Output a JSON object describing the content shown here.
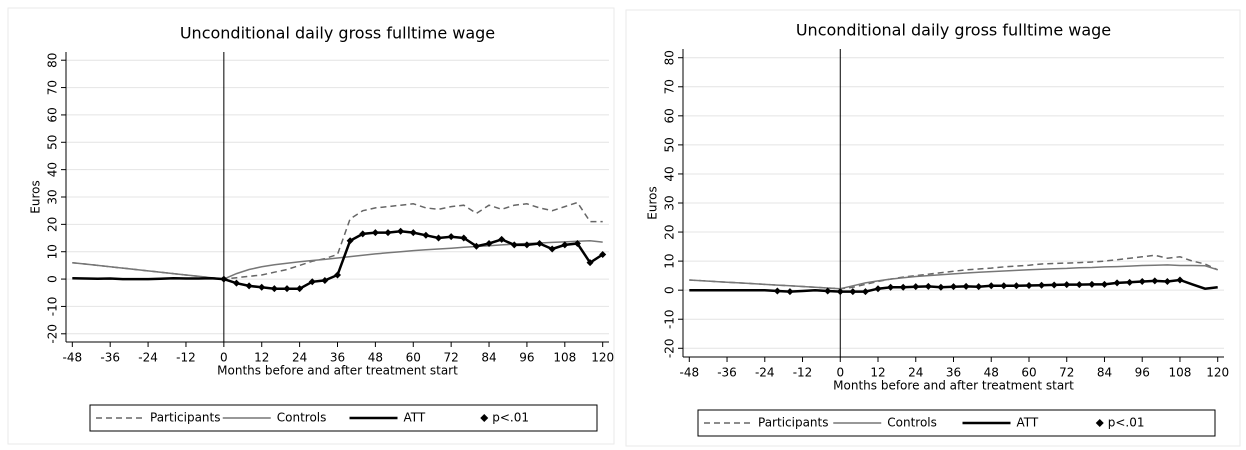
{
  "chart_data": [
    {
      "type": "line",
      "title": "Unconditional daily gross fulltime wage",
      "xlabel": "Months before and after treatment start",
      "ylabel": "Euros",
      "x": [
        -48,
        -44,
        -40,
        -36,
        -32,
        -28,
        -24,
        -20,
        -16,
        -12,
        -8,
        -4,
        0,
        4,
        8,
        12,
        16,
        20,
        24,
        28,
        32,
        36,
        40,
        44,
        48,
        52,
        56,
        60,
        64,
        68,
        72,
        76,
        80,
        84,
        88,
        92,
        96,
        100,
        104,
        108,
        112,
        116,
        120
      ],
      "series": [
        {
          "name": "Participants",
          "color": "#666666",
          "line_style": "dashed",
          "values": [
            6,
            5.5,
            5,
            4.5,
            4,
            3.5,
            3,
            2.5,
            2,
            1.5,
            1,
            0.5,
            0,
            0.5,
            1,
            1.5,
            2.5,
            3.5,
            5,
            6.5,
            7.5,
            9,
            22,
            25,
            26,
            26.5,
            27,
            27.5,
            26,
            25.5,
            26.5,
            27,
            24,
            27,
            25.5,
            27,
            27.5,
            26,
            25,
            26.5,
            28,
            21,
            21
          ]
        },
        {
          "name": "Controls",
          "color": "#777777",
          "line_style": "solid",
          "values": [
            6,
            5.5,
            5,
            4.5,
            4,
            3.5,
            3,
            2.5,
            2,
            1.5,
            1,
            0.5,
            0,
            2,
            3.5,
            4.5,
            5.2,
            5.8,
            6.3,
            6.8,
            7.2,
            7.7,
            8.2,
            8.7,
            9.2,
            9.6,
            10,
            10.4,
            10.7,
            11,
            11.3,
            11.6,
            11.9,
            12.2,
            12.5,
            12.8,
            13,
            13.2,
            13.4,
            13.6,
            13.8,
            14,
            13.5
          ]
        },
        {
          "name": "ATT",
          "color": "#000000",
          "line_style": "thick",
          "values": [
            0.3,
            0.2,
            0.1,
            0.2,
            0,
            0,
            0,
            0.1,
            0.3,
            0.2,
            0.2,
            0.3,
            0,
            -1.5,
            -2.5,
            -3,
            -3.5,
            -3.5,
            -3.5,
            -1,
            -0.5,
            1.5,
            14,
            16.5,
            17,
            17,
            17.5,
            17,
            16,
            15,
            15.5,
            15,
            12,
            13,
            14.5,
            12.5,
            12.5,
            13,
            11,
            12.5,
            13,
            6,
            9
          ]
        },
        {
          "name": "p<.01",
          "color": "#000000",
          "line_style": "none",
          "marker": "diamond",
          "values": [
            null,
            null,
            null,
            null,
            null,
            null,
            null,
            null,
            null,
            null,
            null,
            null,
            0,
            -1.5,
            -2.5,
            -3,
            -3.5,
            -3.5,
            -3.5,
            -1,
            -0.5,
            1.5,
            14,
            16.5,
            17,
            17,
            17.5,
            17,
            16,
            15,
            15.5,
            15,
            12,
            13,
            14.5,
            12.5,
            12.5,
            13,
            11,
            12.5,
            13,
            6,
            9
          ]
        }
      ],
      "vlines": [
        0
      ],
      "xlim": [
        -50,
        122
      ],
      "ylim": [
        -23,
        83
      ],
      "xticks": [
        -48,
        -36,
        -24,
        -12,
        0,
        12,
        24,
        36,
        48,
        60,
        72,
        84,
        96,
        108,
        120
      ],
      "yticks": [
        -20,
        -10,
        0,
        10,
        20,
        30,
        40,
        50,
        60,
        70,
        80
      ],
      "grid": true,
      "legend": "bottom"
    },
    {
      "type": "line",
      "title": "Unconditional daily gross fulltime wage",
      "xlabel": "Months before and after treatment start",
      "ylabel": "Euros",
      "x": [
        -48,
        -44,
        -40,
        -36,
        -32,
        -28,
        -24,
        -20,
        -16,
        -12,
        -8,
        -4,
        0,
        4,
        8,
        12,
        16,
        20,
        24,
        28,
        32,
        36,
        40,
        44,
        48,
        52,
        56,
        60,
        64,
        68,
        72,
        76,
        80,
        84,
        88,
        92,
        96,
        100,
        104,
        108,
        112,
        116,
        120
      ],
      "series": [
        {
          "name": "Participants",
          "color": "#666666",
          "line_style": "dashed",
          "values": [
            3.5,
            3.25,
            3,
            2.75,
            2.5,
            2.25,
            2,
            1.75,
            1.5,
            1.25,
            1,
            0.75,
            0.5,
            1,
            2,
            3,
            3.8,
            4.5,
            5,
            5.5,
            6,
            6.5,
            7,
            7.3,
            7.6,
            8,
            8.3,
            8.6,
            9,
            9.2,
            9.3,
            9.5,
            9.7,
            10,
            10.5,
            11,
            11.5,
            12,
            11,
            11.5,
            10,
            9,
            7
          ]
        },
        {
          "name": "Controls",
          "color": "#777777",
          "line_style": "solid",
          "values": [
            3.5,
            3.25,
            3,
            2.75,
            2.5,
            2.25,
            2,
            1.75,
            1.5,
            1.25,
            1,
            0.75,
            0.5,
            1.5,
            2.5,
            3.2,
            3.8,
            4.3,
            4.7,
            5,
            5.3,
            5.6,
            5.9,
            6.2,
            6.4,
            6.6,
            6.8,
            7,
            7.2,
            7.4,
            7.5,
            7.7,
            7.8,
            8,
            8.1,
            8.3,
            8.5,
            8.6,
            8.7,
            8.5,
            8.5,
            8.4,
            7
          ]
        },
        {
          "name": "ATT",
          "color": "#000000",
          "line_style": "thick",
          "values": [
            0,
            0,
            0,
            0,
            0,
            0,
            0,
            -0.3,
            -0.5,
            -0.3,
            0,
            -0.3,
            -0.5,
            -0.5,
            -0.5,
            0.5,
            1,
            1,
            1.2,
            1.3,
            1,
            1.2,
            1.3,
            1.2,
            1.5,
            1.5,
            1.5,
            1.6,
            1.7,
            1.8,
            1.9,
            1.9,
            2,
            2,
            2.5,
            2.7,
            3,
            3.2,
            3,
            3.5,
            2,
            0.5,
            1
          ]
        },
        {
          "name": "p<.01",
          "color": "#000000",
          "line_style": "none",
          "marker": "diamond",
          "values": [
            null,
            null,
            null,
            null,
            null,
            null,
            null,
            -0.3,
            -0.5,
            null,
            null,
            -0.3,
            -0.5,
            -0.5,
            -0.5,
            0.5,
            1,
            1,
            1.2,
            1.3,
            1,
            1.2,
            1.3,
            1.2,
            1.5,
            1.5,
            1.5,
            1.6,
            1.7,
            1.8,
            1.9,
            1.9,
            2,
            2,
            2.5,
            2.7,
            3,
            3.2,
            3,
            3.5,
            null,
            null,
            null
          ]
        }
      ],
      "vlines": [
        0
      ],
      "xlim": [
        -50,
        122
      ],
      "ylim": [
        -23,
        83
      ],
      "xticks": [
        -48,
        -36,
        -24,
        -12,
        0,
        12,
        24,
        36,
        48,
        60,
        72,
        84,
        96,
        108,
        120
      ],
      "yticks": [
        -20,
        -10,
        0,
        10,
        20,
        30,
        40,
        50,
        60,
        70,
        80
      ],
      "grid": true,
      "legend": "bottom"
    }
  ]
}
